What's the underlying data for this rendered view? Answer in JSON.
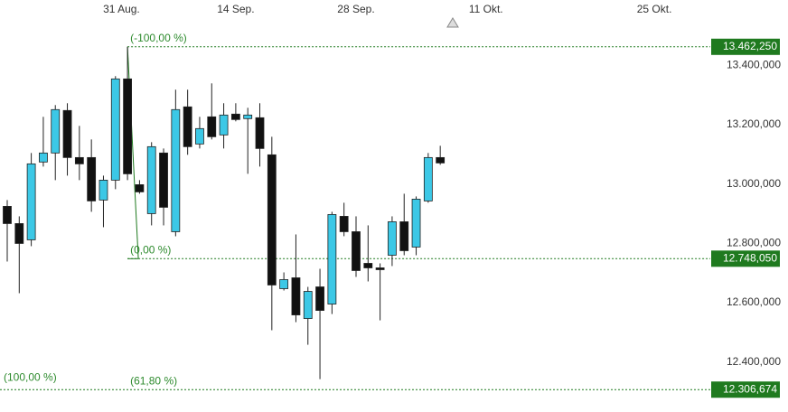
{
  "chart_data": {
    "type": "candlestick",
    "up_color": "#3cc8e6",
    "down_color": "#111111",
    "level_color": "#1f7a1f",
    "grid": false,
    "xlim": [
      -0.6,
      58
    ],
    "xticks": [
      {
        "value": 9.5,
        "label": "31 Aug."
      },
      {
        "value": 19,
        "label": "14 Sep."
      },
      {
        "value": 29,
        "label": "28 Sep."
      },
      {
        "value": 39.8,
        "label": "11 Okt."
      },
      {
        "value": 53.8,
        "label": "25 Okt."
      }
    ],
    "ylim": [
      12280000,
      13620000
    ],
    "yticks": [
      {
        "value": 12400000,
        "label": "12.400,000"
      },
      {
        "value": 12600000,
        "label": "12.600,000"
      },
      {
        "value": 12800000,
        "label": "12.800,000"
      },
      {
        "value": 13000000,
        "label": "13.000,000"
      },
      {
        "value": 13200000,
        "label": "13.200,000"
      },
      {
        "value": 13400000,
        "label": "13.400,000"
      }
    ],
    "open": [
      12924400,
      12866400,
      12811600,
      13073900,
      13104300,
      13247600,
      13089000,
      13089000,
      12945700,
      13012800,
      13354000,
      12997500,
      12900000,
      13104300,
      12839000,
      13259800,
      13134700,
      13226200,
      13165200,
      13235400,
      13220100,
      13223200,
      13098200,
      12647000,
      12683600,
      12546300,
      12653000,
      12595100,
      12890800,
      12839000,
      12732300,
      12717100,
      12759700,
      12872500,
      12787200,
      12942700,
      13089000
    ],
    "high": [
      12945700,
      12890800,
      13104300,
      13226200,
      13265800,
      13272000,
      13195700,
      13150000,
      13028000,
      13363400,
      13462250,
      13012800,
      13140800,
      13119500,
      13317700,
      13317700,
      13226200,
      13339000,
      13272000,
      13272000,
      13256700,
      13272000,
      13159100,
      12701800,
      12829800,
      12653000,
      12714000,
      12906100,
      12936600,
      12890800,
      12860300,
      12732300,
      12890800,
      12967000,
      12957900,
      13104300,
      13128600
    ],
    "low": [
      12738400,
      12631700,
      12790200,
      13058500,
      13012800,
      13028000,
      13012800,
      12906100,
      12854200,
      12982300,
      13012800,
      12967000,
      12860300,
      12860300,
      12823800,
      13098200,
      13119500,
      13150000,
      13119500,
      13211000,
      13034100,
      13058500,
      12506700,
      12640800,
      12534100,
      12457900,
      12342000,
      12561500,
      12823800,
      12686600,
      12671400,
      12540200,
      12723200,
      12759700,
      12759700,
      12936600,
      13064600
    ],
    "close": [
      12866400,
      12799400,
      13067700,
      13104300,
      13250600,
      13089000,
      13067700,
      12942700,
      13012800,
      13354000,
      13034100,
      12973200,
      13125600,
      12921300,
      13250600,
      13125600,
      13186600,
      13159100,
      13232300,
      13217100,
      13232300,
      13119500,
      12659300,
      12677500,
      12558500,
      12637800,
      12573700,
      12896900,
      12839000,
      12708000,
      12717100,
      12711000,
      12872500,
      12775000,
      12948700,
      13089000,
      13070700
    ],
    "levels": [
      {
        "value": 13462250,
        "label": "13.462,250",
        "fib": "(-100,00 %)"
      },
      {
        "value": 12748050,
        "label": "12.748,050",
        "fib": "(0,00 %)"
      },
      {
        "value": 12306674,
        "label": "12.306,674",
        "fib": "(61,80 %)"
      }
    ],
    "annotations": [
      "(100,00 %)"
    ]
  }
}
